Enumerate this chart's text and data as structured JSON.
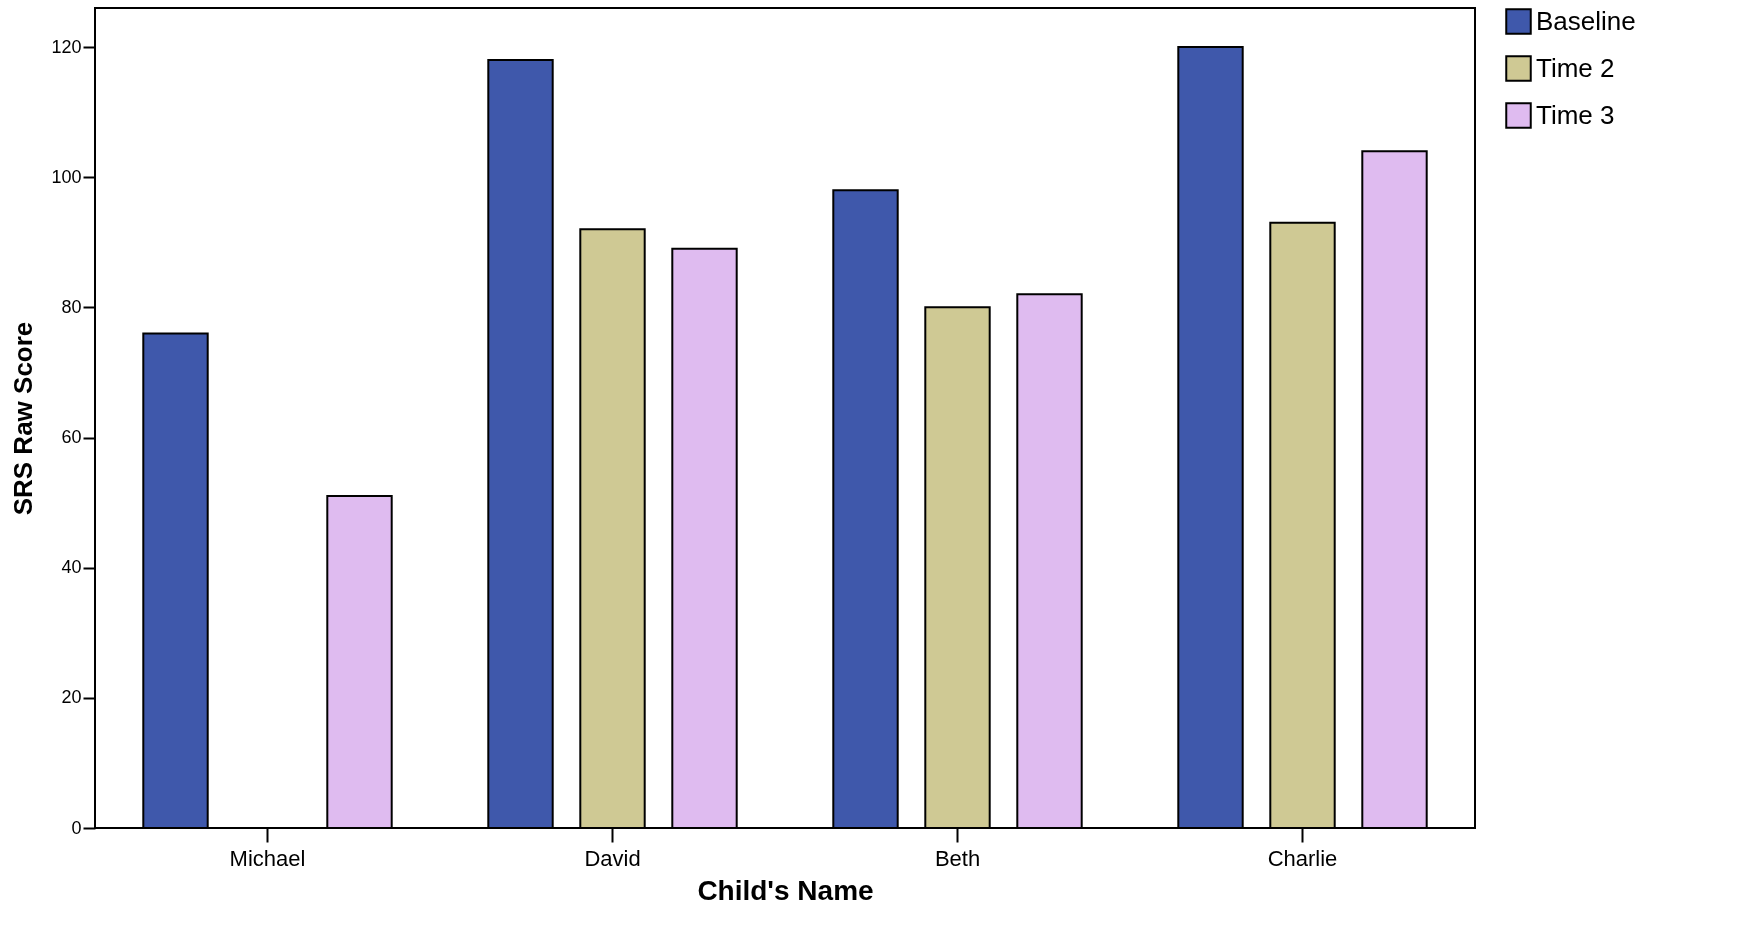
{
  "chart_data": {
    "type": "bar",
    "xlabel": "Child's Name",
    "ylabel": "SRS Raw Score",
    "categories": [
      "Michael",
      "David",
      "Beth",
      "Charlie"
    ],
    "series": [
      {
        "name": "Baseline",
        "color": "#3f58ab",
        "values": [
          76,
          118,
          98,
          120
        ]
      },
      {
        "name": "Time 2",
        "color": "#cfc994",
        "values": [
          null,
          92,
          80,
          93
        ]
      },
      {
        "name": "Time 3",
        "color": "#dfbbf0",
        "values": [
          51,
          89,
          82,
          104
        ]
      }
    ],
    "ylim": [
      0,
      126
    ],
    "yticks": [
      0,
      20,
      40,
      60,
      80,
      100,
      120
    ],
    "grid": false,
    "legend": "top right"
  }
}
